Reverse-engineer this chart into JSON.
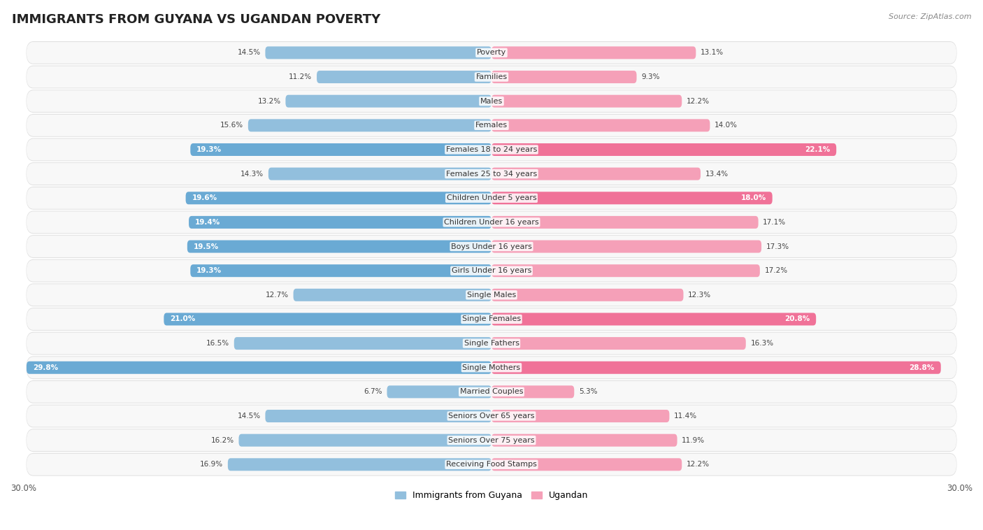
{
  "title": "IMMIGRANTS FROM GUYANA VS UGANDAN POVERTY",
  "source": "Source: ZipAtlas.com",
  "categories": [
    "Poverty",
    "Families",
    "Males",
    "Females",
    "Females 18 to 24 years",
    "Females 25 to 34 years",
    "Children Under 5 years",
    "Children Under 16 years",
    "Boys Under 16 years",
    "Girls Under 16 years",
    "Single Males",
    "Single Females",
    "Single Fathers",
    "Single Mothers",
    "Married Couples",
    "Seniors Over 65 years",
    "Seniors Over 75 years",
    "Receiving Food Stamps"
  ],
  "guyana_values": [
    14.5,
    11.2,
    13.2,
    15.6,
    19.3,
    14.3,
    19.6,
    19.4,
    19.5,
    19.3,
    12.7,
    21.0,
    16.5,
    29.8,
    6.7,
    14.5,
    16.2,
    16.9
  ],
  "ugandan_values": [
    13.1,
    9.3,
    12.2,
    14.0,
    22.1,
    13.4,
    18.0,
    17.1,
    17.3,
    17.2,
    12.3,
    20.8,
    16.3,
    28.8,
    5.3,
    11.4,
    11.9,
    12.2
  ],
  "guyana_color": "#92bfdd",
  "ugandan_color": "#f5a0b8",
  "guyana_highlight_color": "#6aaad4",
  "ugandan_highlight_color": "#f07298",
  "highlight_threshold": 18.0,
  "xlim": 30.0,
  "bar_height": 0.52,
  "row_bg_color": "#f0f0f0",
  "row_bg_inner": "#fafafa",
  "legend_guyana": "Immigrants from Guyana",
  "legend_ugandan": "Ugandan",
  "title_fontsize": 13,
  "label_fontsize": 8.0,
  "value_fontsize": 7.5,
  "axis_label_fontsize": 8.5
}
